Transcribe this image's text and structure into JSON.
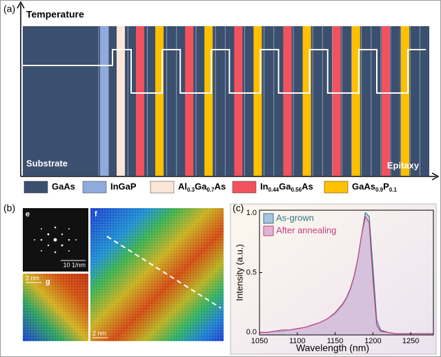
{
  "panel_a": {
    "label": "(a)",
    "axis_label": "Temperature",
    "left_label": "Substrate",
    "right_label": "Epitaxy",
    "legend": [
      {
        "parts": [
          "GaAs"
        ],
        "color": "#3b4f6e"
      },
      {
        "parts": [
          "InGaP"
        ],
        "color": "#8faadc"
      },
      {
        "parts": [
          "Al",
          "0.3",
          "Ga",
          "0.7",
          "As"
        ],
        "color": "#fbe5d6"
      },
      {
        "parts": [
          "In",
          "0.44",
          "Ga",
          "0.56",
          "As"
        ],
        "color": "#f2525e"
      },
      {
        "parts": [
          "GaAs",
          "0.9",
          "P",
          "0.1"
        ],
        "color": "#ffc000"
      }
    ]
  },
  "panel_b": {
    "label": "(b)",
    "images": [
      {
        "label": "e",
        "scale": "10 1/nm"
      },
      {
        "label": "f",
        "scale": "2 nm"
      },
      {
        "label": "g",
        "scale": "2 nm"
      }
    ]
  },
  "chart_data": {
    "type": "area",
    "panel_label": "(c)",
    "x_label": "Wavelength (nm)",
    "y_label": "Intensity (a.u.)",
    "x": [
      1050,
      1060,
      1070,
      1080,
      1090,
      1100,
      1110,
      1120,
      1130,
      1140,
      1150,
      1160,
      1165,
      1170,
      1175,
      1180,
      1185,
      1190,
      1195,
      1200,
      1205,
      1210,
      1220,
      1230,
      1240,
      1250,
      1260,
      1270,
      1280
    ],
    "series": [
      {
        "name": "As-grown",
        "color": "#2e7a8a",
        "fill": "#a9c3df",
        "values": [
          0.02,
          0.02,
          0.03,
          0.03,
          0.04,
          0.05,
          0.06,
          0.08,
          0.1,
          0.13,
          0.17,
          0.24,
          0.29,
          0.36,
          0.46,
          0.6,
          0.8,
          0.98,
          0.95,
          0.55,
          0.12,
          0.04,
          0.02,
          0.01,
          0.01,
          0.01,
          0.01,
          0.01,
          0.01
        ]
      },
      {
        "name": "After annealing",
        "color": "#c0407f",
        "fill": "#e0b3d3",
        "values": [
          0.02,
          0.02,
          0.03,
          0.04,
          0.04,
          0.05,
          0.06,
          0.08,
          0.1,
          0.13,
          0.18,
          0.25,
          0.3,
          0.37,
          0.47,
          0.61,
          0.8,
          0.95,
          0.9,
          0.45,
          0.08,
          0.03,
          0.02,
          0.01,
          0.01,
          0.01,
          0.01,
          0.01,
          0.01
        ]
      }
    ],
    "xlim": [
      1050,
      1280
    ],
    "xticks": [
      1050,
      1100,
      1150,
      1200,
      1250
    ],
    "ylim": [
      0,
      1
    ],
    "yticks": [
      {
        "value": 0,
        "label": "0.0"
      },
      {
        "value": 0.5,
        "label": "0.5"
      },
      {
        "value": 1,
        "label": "1.0"
      }
    ]
  }
}
